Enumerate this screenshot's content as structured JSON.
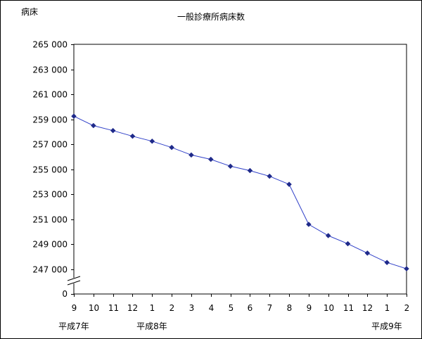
{
  "chart_data": {
    "type": "line",
    "title": "一般診療所病床数",
    "ylabel": "病床",
    "ylim": [
      247000,
      265000
    ],
    "yticks": [
      "265 000",
      "263 000",
      "261 000",
      "259 000",
      "257 000",
      "255 000",
      "253 000",
      "251 000",
      "249 000",
      "247 000"
    ],
    "ytick_values": [
      265000,
      263000,
      261000,
      259000,
      257000,
      255000,
      253000,
      251000,
      249000,
      247000
    ],
    "y_zero_label": "0",
    "axis_break": true,
    "grid": "dashed horizontal",
    "categories": [
      "9",
      "10",
      "11",
      "12",
      "1",
      "2",
      "3",
      "4",
      "5",
      "6",
      "7",
      "8",
      "9",
      "10",
      "11",
      "12",
      "1",
      "2"
    ],
    "era_labels": [
      {
        "label": "平成7年",
        "index": 0
      },
      {
        "label": "平成8年",
        "index": 4
      },
      {
        "label": "平成9年",
        "index": 16
      }
    ],
    "series": [
      {
        "color": "#1f2a8a",
        "values": [
          259250,
          258500,
          258100,
          257650,
          257250,
          256750,
          256150,
          255800,
          255250,
          254900,
          254450,
          253800,
          250600,
          249700,
          249050,
          248300,
          247550,
          247050
        ]
      }
    ]
  }
}
